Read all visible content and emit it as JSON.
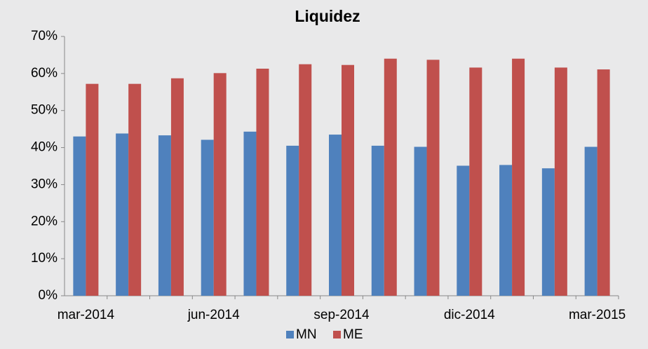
{
  "chart_data": {
    "type": "bar",
    "title": "Liquidez",
    "categories": [
      "mar-2014",
      null,
      null,
      "jun-2014",
      null,
      null,
      "sep-2014",
      null,
      null,
      "dic-2014",
      null,
      null,
      "mar-2015"
    ],
    "series": [
      {
        "name": "MN",
        "color": "#4f81bd",
        "values": [
          43,
          43.8,
          43.3,
          42.1,
          44.3,
          40.5,
          43.5,
          40.5,
          40.2,
          35.1,
          35.3,
          34.4,
          40.2
        ]
      },
      {
        "name": "ME",
        "color": "#c0504d",
        "values": [
          57.2,
          57.2,
          58.7,
          60.1,
          61.3,
          62.5,
          62.3,
          64,
          63.7,
          61.6,
          64,
          61.6,
          61.1
        ]
      }
    ],
    "ylim": [
      0,
      70
    ],
    "yticks": [
      {
        "value": 0,
        "label": "0%"
      },
      {
        "value": 10,
        "label": "10%"
      },
      {
        "value": 20,
        "label": "20%"
      },
      {
        "value": 30,
        "label": "30%"
      },
      {
        "value": 40,
        "label": "40%"
      },
      {
        "value": 50,
        "label": "50%"
      },
      {
        "value": 60,
        "label": "60%"
      },
      {
        "value": 70,
        "label": "70%"
      }
    ],
    "legend": "bottom"
  }
}
